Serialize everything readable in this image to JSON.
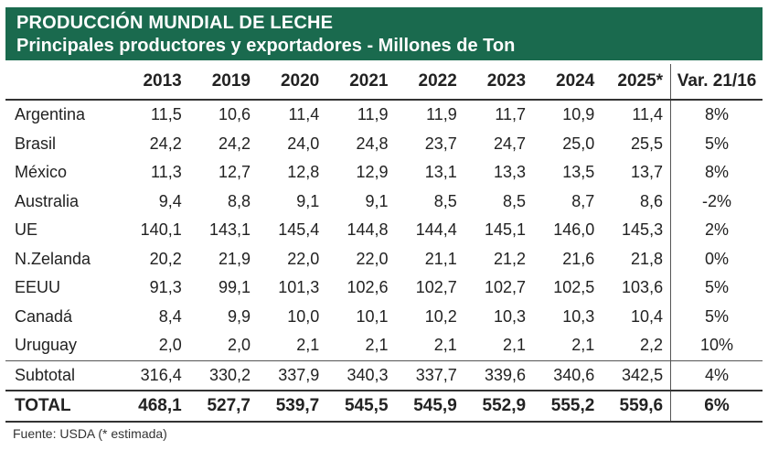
{
  "header": {
    "title": "PRODUCCIÓN MUNDIAL DE LECHE",
    "subtitle": "Principales productores y exportadores - Millones de Ton"
  },
  "chart_data": {
    "type": "table",
    "columns": [
      "",
      "2013",
      "2019",
      "2020",
      "2021",
      "2022",
      "2023",
      "2024",
      "2025*",
      "Var. 21/16"
    ],
    "rows": [
      {
        "label": "Argentina",
        "values": [
          "11,5",
          "10,6",
          "11,4",
          "11,9",
          "11,9",
          "11,7",
          "10,9",
          "11,4"
        ],
        "var": "8%"
      },
      {
        "label": "Brasil",
        "values": [
          "24,2",
          "24,2",
          "24,0",
          "24,8",
          "23,7",
          "24,7",
          "25,0",
          "25,5"
        ],
        "var": "5%"
      },
      {
        "label": "México",
        "values": [
          "11,3",
          "12,7",
          "12,8",
          "12,9",
          "13,1",
          "13,3",
          "13,5",
          "13,7"
        ],
        "var": "8%"
      },
      {
        "label": "Australia",
        "values": [
          "9,4",
          "8,8",
          "9,1",
          "9,1",
          "8,5",
          "8,5",
          "8,7",
          "8,6"
        ],
        "var": "-2%"
      },
      {
        "label": "UE",
        "values": [
          "140,1",
          "143,1",
          "145,4",
          "144,8",
          "144,4",
          "145,1",
          "146,0",
          "145,3"
        ],
        "var": "2%"
      },
      {
        "label": "N.Zelanda",
        "values": [
          "20,2",
          "21,9",
          "22,0",
          "22,0",
          "21,1",
          "21,2",
          "21,6",
          "21,8"
        ],
        "var": "0%"
      },
      {
        "label": "EEUU",
        "values": [
          "91,3",
          "99,1",
          "101,3",
          "102,6",
          "102,7",
          "102,7",
          "102,5",
          "103,6"
        ],
        "var": "5%"
      },
      {
        "label": "Canadá",
        "values": [
          "8,4",
          "9,9",
          "10,0",
          "10,1",
          "10,2",
          "10,3",
          "10,3",
          "10,4"
        ],
        "var": "5%"
      },
      {
        "label": "Uruguay",
        "values": [
          "2,0",
          "2,0",
          "2,1",
          "2,1",
          "2,1",
          "2,1",
          "2,1",
          "2,2"
        ],
        "var": "10%"
      }
    ],
    "subtotal": {
      "label": "Subtotal",
      "values": [
        "316,4",
        "330,2",
        "337,9",
        "340,3",
        "337,7",
        "339,6",
        "340,6",
        "342,5"
      ],
      "var": "4%"
    },
    "total": {
      "label": "TOTAL",
      "values": [
        "468,1",
        "527,7",
        "539,7",
        "545,5",
        "545,9",
        "552,9",
        "555,2",
        "559,6"
      ],
      "var": "6%"
    }
  },
  "footer": {
    "source": "Fuente: USDA  (* estimada)"
  },
  "colors": {
    "header_bg": "#1a6a4e",
    "header_text": "#ffffff"
  }
}
